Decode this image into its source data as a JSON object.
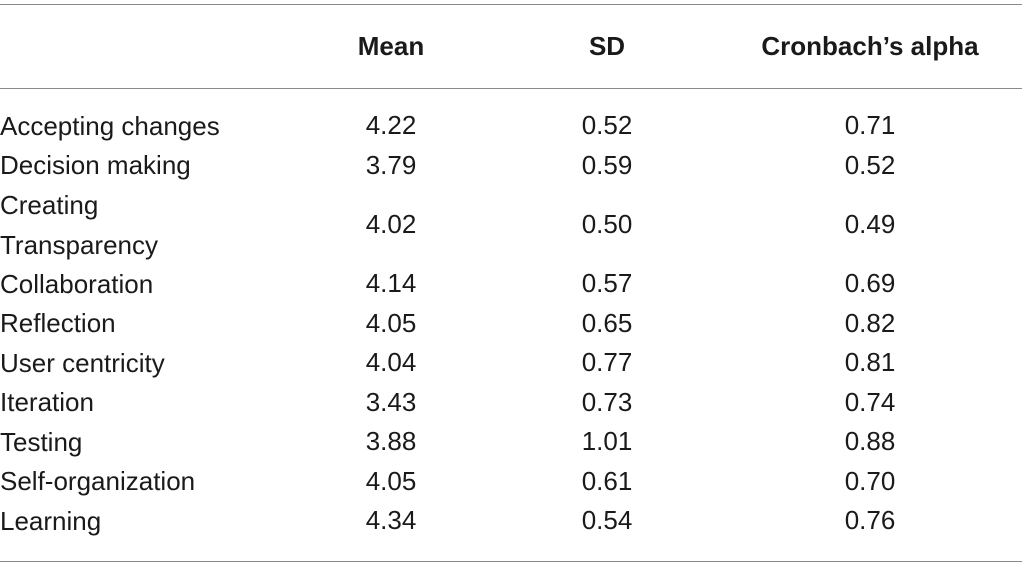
{
  "table": {
    "headers": {
      "label": "",
      "mean": "Mean",
      "sd": "SD",
      "alpha": "Cronbach’s alpha"
    },
    "rows": [
      {
        "label": "Accepting changes",
        "mean": "4.22",
        "sd": "0.52",
        "alpha": "0.71"
      },
      {
        "label": "Decision making",
        "mean": "3.79",
        "sd": "0.59",
        "alpha": "0.52"
      },
      {
        "label": "Creating Transparency",
        "mean": "4.02",
        "sd": "0.50",
        "alpha": "0.49"
      },
      {
        "label": "Collaboration",
        "mean": "4.14",
        "sd": "0.57",
        "alpha": "0.69"
      },
      {
        "label": "Reflection",
        "mean": "4.05",
        "sd": "0.65",
        "alpha": "0.82"
      },
      {
        "label": "User centricity",
        "mean": "4.04",
        "sd": "0.77",
        "alpha": "0.81"
      },
      {
        "label": "Iteration",
        "mean": "3.43",
        "sd": "0.73",
        "alpha": "0.74"
      },
      {
        "label": "Testing",
        "mean": "3.88",
        "sd": "1.01",
        "alpha": "0.88"
      },
      {
        "label": "Self-organization",
        "mean": "4.05",
        "sd": "0.61",
        "alpha": "0.70"
      },
      {
        "label": "Learning",
        "mean": "4.34",
        "sd": "0.54",
        "alpha": "0.76"
      }
    ]
  }
}
